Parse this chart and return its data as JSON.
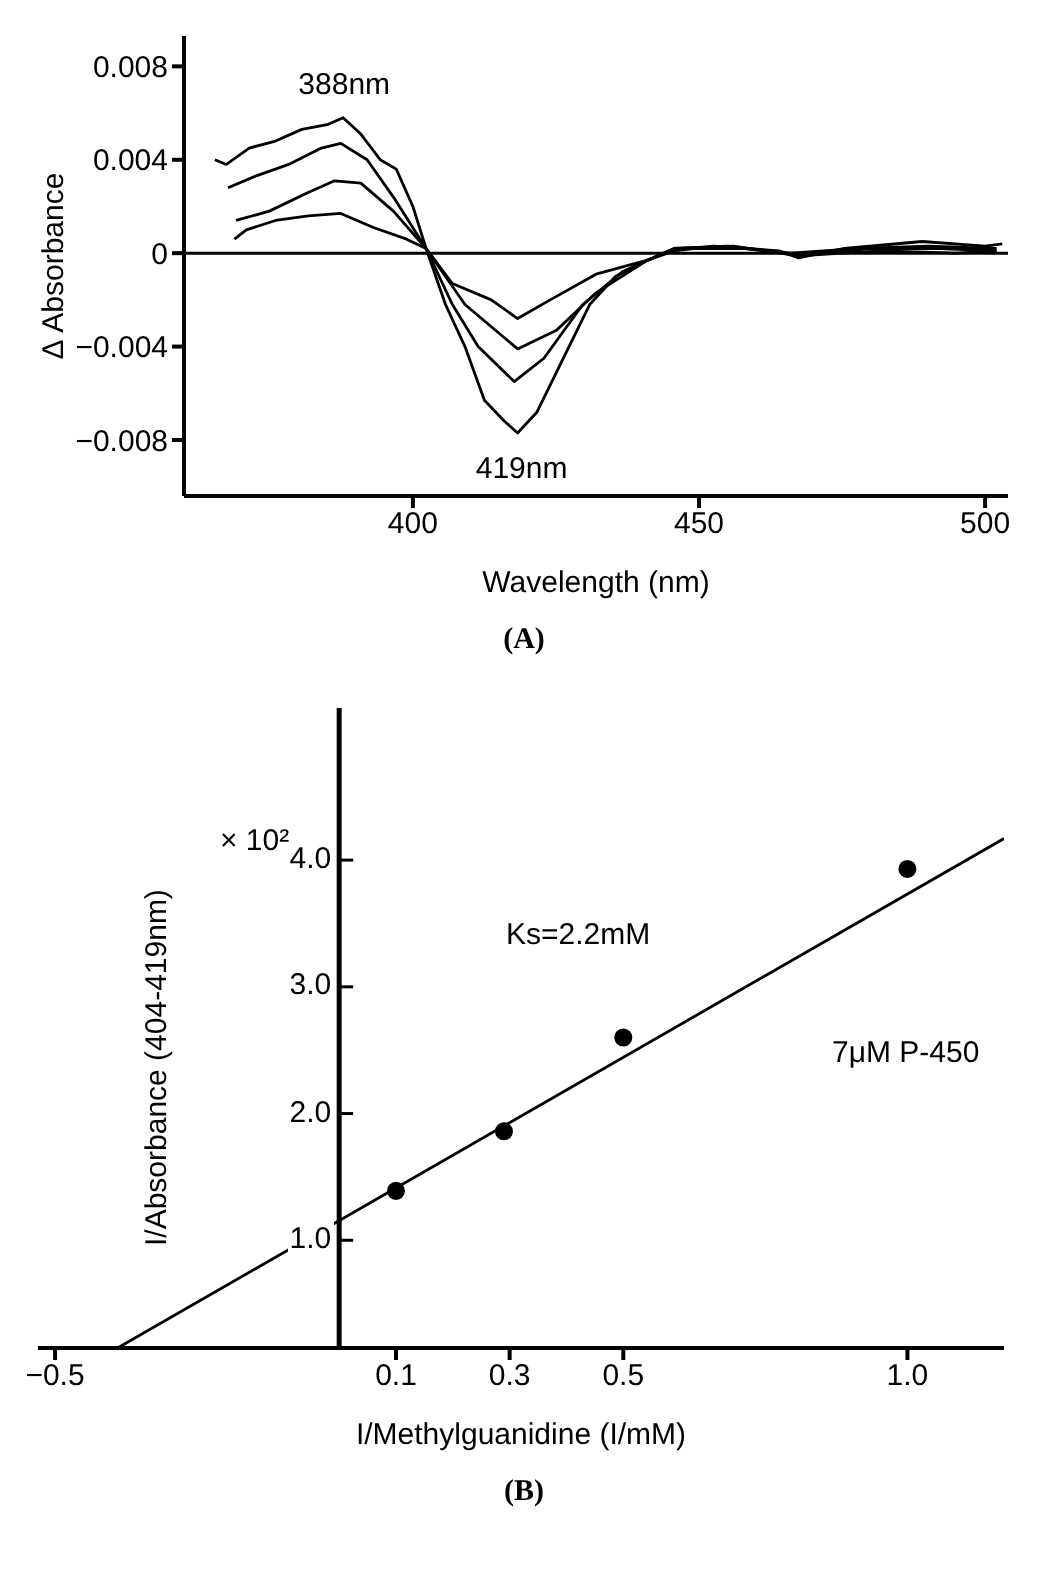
{
  "chart_data": [
    {
      "type": "line",
      "xlabel": "Wavelength (nm)",
      "ylabel": "Δ Absorbance",
      "xlim": [
        360,
        504
      ],
      "xticks": [
        400,
        450,
        500
      ],
      "ylim": [
        -0.0104,
        0.0093
      ],
      "yticks": [
        0.008,
        0.004,
        0,
        {
          "value": -0.004,
          "label": "−0.004"
        },
        {
          "value": -0.008,
          "label": "−0.008"
        }
      ],
      "ref_lines": [
        {
          "axis": "y",
          "value": 0,
          "color": "#000000"
        }
      ],
      "annotations": [
        {
          "text": "388nm",
          "x": 388,
          "y": 0.0058
        },
        {
          "text": "419nm",
          "x": 419,
          "y": -0.0077
        },
        "(A)"
      ],
      "series": [
        {
          "color": "#000000",
          "x": [
            365.4,
            367.4,
            371.4,
            376,
            380.6,
            385,
            387.8,
            390.9,
            394.3,
            397.1,
            400,
            402.3,
            405.7,
            409.1,
            412.5,
            416,
            418.3,
            421.7,
            426.3,
            430.9,
            435.4,
            441,
            445.7,
            452.6,
            464,
            467.4,
            475.4,
            489,
            500,
            503
          ],
          "values": [
            0.004,
            0.0038,
            0.0045,
            0.0048,
            0.0053,
            0.0055,
            0.0058,
            0.0051,
            0.004,
            0.0036,
            0.002,
            0.0002,
            -0.0022,
            -0.004,
            -0.0063,
            -0.0072,
            -0.0077,
            -0.0068,
            -0.0045,
            -0.0022,
            -0.001,
            -0.0003,
            0.0001,
            0.0003,
            0.0001,
            -0.0002,
            0.0002,
            0.0005,
            0.0003,
            0.0004
          ]
        },
        {
          "color": "#000000",
          "x": [
            367.7,
            372.5,
            378.3,
            384,
            387.4,
            392,
            396.6,
            402.3,
            406.9,
            411.4,
            417.7,
            422.9,
            429.7,
            436.6,
            445.7,
            455,
            466,
            478,
            490,
            502
          ],
          "values": [
            0.0028,
            0.0033,
            0.0038,
            0.0045,
            0.0047,
            0.004,
            0.0024,
            0.0002,
            -0.0022,
            -0.004,
            -0.0055,
            -0.0045,
            -0.0022,
            -0.0008,
            0.0002,
            0.0003,
            0,
            0.0002,
            0.0003,
            0.0002
          ]
        },
        {
          "color": "#000000",
          "x": [
            369.1,
            374.9,
            381.7,
            386.3,
            390.9,
            396.6,
            402.3,
            409.1,
            418.3,
            425.1,
            432,
            441,
            445.7,
            456,
            467,
            480,
            492,
            502
          ],
          "values": [
            0.0014,
            0.0018,
            0.0026,
            0.0031,
            0.003,
            0.0018,
            0.0002,
            -0.0022,
            -0.0041,
            -0.0033,
            -0.0017,
            -0.0003,
            0.0002,
            0.0003,
            -0.0001,
            0.0002,
            0.0002,
            0.0001
          ]
        },
        {
          "color": "#000000",
          "x": [
            368.8,
            370.9,
            376,
            381.7,
            387.4,
            393.1,
            398.9,
            402.3,
            406.9,
            413.7,
            418.3,
            424,
            432,
            441,
            445.7,
            458,
            468,
            482,
            495,
            502
          ],
          "values": [
            0.0006,
            0.001,
            0.0014,
            0.0016,
            0.0017,
            0.0011,
            0.0006,
            0.0002,
            -0.0013,
            -0.002,
            -0.0028,
            -0.002,
            -0.0009,
            -0.0003,
            0.0002,
            0.0002,
            -0.0001,
            0.0001,
            0,
            0.0001
          ]
        }
      ]
    },
    {
      "type": "scatter",
      "xlabel": "I/Methylguanidine (I/mM)",
      "ylabel": "I/Absorbance (404-419nm)",
      "xlim": [
        -0.53,
        1.17
      ],
      "xticks": [
        {
          "value": -0.5,
          "label": "−0.5"
        },
        0.1,
        0.3,
        0.5,
        {
          "value": 1,
          "label": "1.0"
        }
      ],
      "ylim": [
        0.15,
        5.2
      ],
      "yticks": [
        {
          "value": 1,
          "label": "1.0"
        },
        {
          "value": 2,
          "label": "2.0"
        },
        {
          "value": 3,
          "label": "3.0"
        },
        {
          "value": 4,
          "label": "4.0"
        }
      ],
      "annotations": [
        "× 10²",
        "Ks=2.2mM",
        "7μM P-450",
        "(B)"
      ],
      "series": [
        {
          "marker": "circle",
          "color": "#000000",
          "x": [
            0.1,
            0.29,
            0.5,
            1.0
          ],
          "values": [
            1.39,
            1.86,
            2.6,
            3.93
          ]
        },
        {
          "type": "line",
          "color": "#000000",
          "x": [
            -0.39,
            1.17
          ],
          "values": [
            0.15,
            4.17
          ]
        }
      ]
    }
  ]
}
